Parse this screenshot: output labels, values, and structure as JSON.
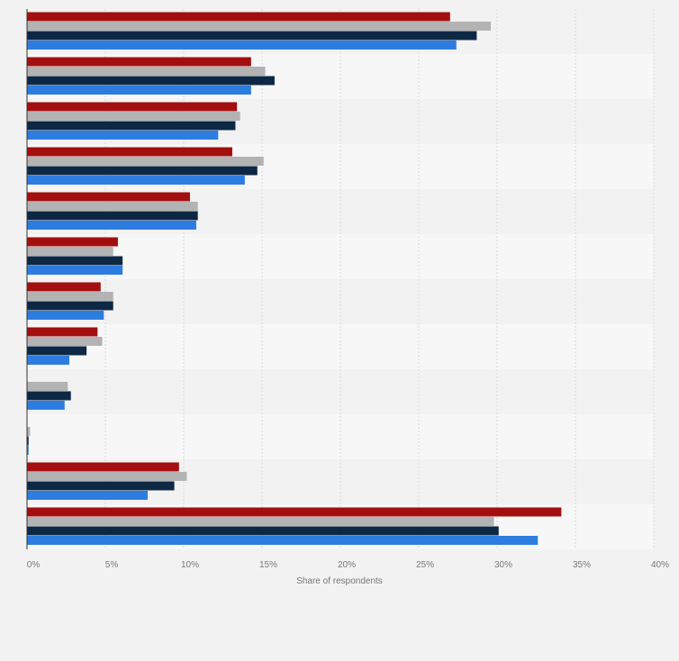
{
  "chart_data": {
    "type": "bar",
    "orientation": "horizontal",
    "title": "",
    "xlabel": "Share of respondents",
    "ylabel": "",
    "xlim": [
      0,
      40
    ],
    "x_ticks": [
      0,
      5,
      10,
      15,
      20,
      25,
      30,
      35,
      40
    ],
    "x_tick_labels": [
      "0%",
      "5%",
      "10%",
      "15%",
      "20%",
      "25%",
      "30%",
      "35%",
      "40%"
    ],
    "categories": [
      "",
      "",
      "",
      "",
      "",
      "",
      "",
      "",
      "",
      "",
      "",
      ""
    ],
    "series": [
      {
        "name": "",
        "color": "#a30f0f",
        "values": [
          27.0,
          14.3,
          13.4,
          13.1,
          10.4,
          5.8,
          4.7,
          4.5,
          0,
          0,
          9.7,
          34.1
        ]
      },
      {
        "name": "",
        "color": "#b3b3b3",
        "values": [
          29.6,
          15.2,
          13.6,
          15.1,
          10.9,
          5.5,
          5.5,
          4.8,
          2.6,
          0.2,
          10.2,
          29.8
        ]
      },
      {
        "name": "",
        "color": "#0d2845",
        "values": [
          28.7,
          15.8,
          13.3,
          14.7,
          10.9,
          6.1,
          5.5,
          3.8,
          2.8,
          0.1,
          9.4,
          30.1
        ]
      },
      {
        "name": "",
        "color": "#2d7de0",
        "values": [
          27.4,
          14.3,
          12.2,
          13.9,
          10.8,
          6.1,
          4.9,
          2.7,
          2.4,
          0.1,
          7.7,
          32.6
        ]
      }
    ],
    "grid": true,
    "legend": "none"
  }
}
